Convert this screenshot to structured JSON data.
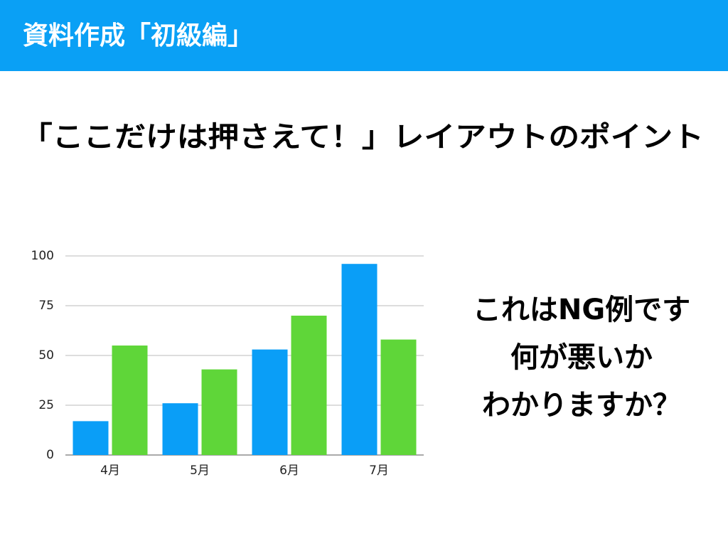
{
  "header": {
    "title": "資料作成「初級編」"
  },
  "subtitle": "「ここだけは押さえて！」レイアウトのポイント",
  "note": [
    "これはNG例です",
    "何が悪いか",
    "わかりますか？"
  ],
  "chart_data": {
    "type": "bar",
    "categories": [
      "4月",
      "5月",
      "6月",
      "7月"
    ],
    "series": [
      {
        "color": "#0a9ef7",
        "values": [
          17,
          26,
          53,
          96
        ]
      },
      {
        "color": "#5fd639",
        "values": [
          55,
          43,
          70,
          58
        ]
      }
    ],
    "ylim": [
      0,
      100
    ],
    "yticks": [
      0,
      25,
      50,
      75,
      100
    ],
    "grid": true
  }
}
